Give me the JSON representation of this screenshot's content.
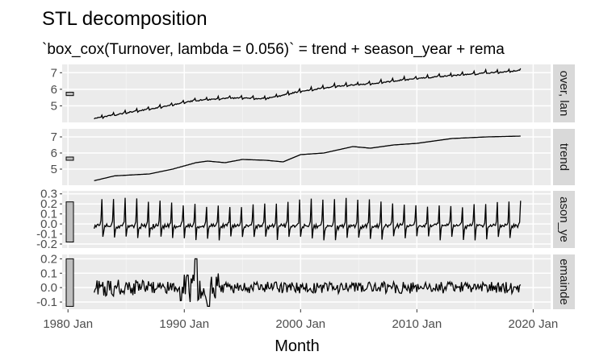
{
  "chart_data": {
    "type": "line",
    "title": "STL decomposition",
    "subtitle": "`box_cox(Turnover, lambda = 0.056)` = trend + season_year + rema",
    "xlabel": "Month",
    "x_ticks": [
      "1980 Jan",
      "1990 Jan",
      "2000 Jan",
      "2010 Jan",
      "2020 Jan"
    ],
    "x_range": [
      1979.5,
      2021.5
    ],
    "x_start": 1982.25,
    "x_end": 2018.92,
    "grid": true,
    "panels": [
      {
        "strip": "over, lan",
        "yticks": [
          "5",
          "6",
          "7"
        ],
        "ylim": [
          4.0,
          7.5
        ],
        "scale_bar": [
          5.62,
          5.82
        ],
        "description": "Turnover (Box-Cox transformed) rising from about 4.25 in 1982 to about 7.2 in 2018 with strong annual spikes",
        "anchors": [
          [
            1982.25,
            4.25
          ],
          [
            1985,
            4.6
          ],
          [
            1988,
            4.95
          ],
          [
            1991,
            5.35
          ],
          [
            1994,
            5.5
          ],
          [
            1997,
            5.45
          ],
          [
            2000,
            5.9
          ],
          [
            2003,
            6.2
          ],
          [
            2006,
            6.35
          ],
          [
            2009,
            6.6
          ],
          [
            2012,
            6.8
          ],
          [
            2015,
            6.95
          ],
          [
            2018.92,
            7.15
          ]
        ],
        "seasonal_amp": 0.15
      },
      {
        "strip": "trend",
        "yticks": [
          "5",
          "6",
          "7"
        ],
        "ylim": [
          4.0,
          7.5
        ],
        "scale_bar": [
          5.55,
          5.75
        ],
        "description": "Smooth trend component",
        "anchors": [
          [
            1982.25,
            4.28
          ],
          [
            1984,
            4.58
          ],
          [
            1987,
            4.7
          ],
          [
            1989,
            5.0
          ],
          [
            1991,
            5.4
          ],
          [
            1992,
            5.5
          ],
          [
            1993.5,
            5.4
          ],
          [
            1995,
            5.6
          ],
          [
            1997,
            5.55
          ],
          [
            1998.5,
            5.45
          ],
          [
            2000,
            5.9
          ],
          [
            2002,
            6.0
          ],
          [
            2004.5,
            6.4
          ],
          [
            2006,
            6.3
          ],
          [
            2008,
            6.5
          ],
          [
            2010,
            6.6
          ],
          [
            2013,
            6.9
          ],
          [
            2016,
            7.0
          ],
          [
            2018.92,
            7.05
          ]
        ],
        "seasonal_amp": 0
      },
      {
        "strip": "ason_ye",
        "yticks": [
          "-0.2",
          "-0.1",
          "0.0",
          "0.1",
          "0.2",
          "0.3"
        ],
        "ylim": [
          -0.24,
          0.33
        ],
        "scale_bar": [
          -0.18,
          0.22
        ],
        "description": "Yearly seasonal pattern with large December peak around 0.25 and post-peak trough around -0.15",
        "anchors": [],
        "seasonal_amp": 0.25
      },
      {
        "strip": "emainde",
        "yticks": [
          "-0.1",
          "0.0",
          "0.1",
          "0.2"
        ],
        "ylim": [
          -0.15,
          0.23
        ],
        "scale_bar": [
          -0.13,
          0.2
        ],
        "description": "Remainder noise around 0, larger swings (about -0.13 to 0.2) around 1990-1992",
        "anchors": [],
        "seasonal_amp": 0.04
      }
    ]
  }
}
